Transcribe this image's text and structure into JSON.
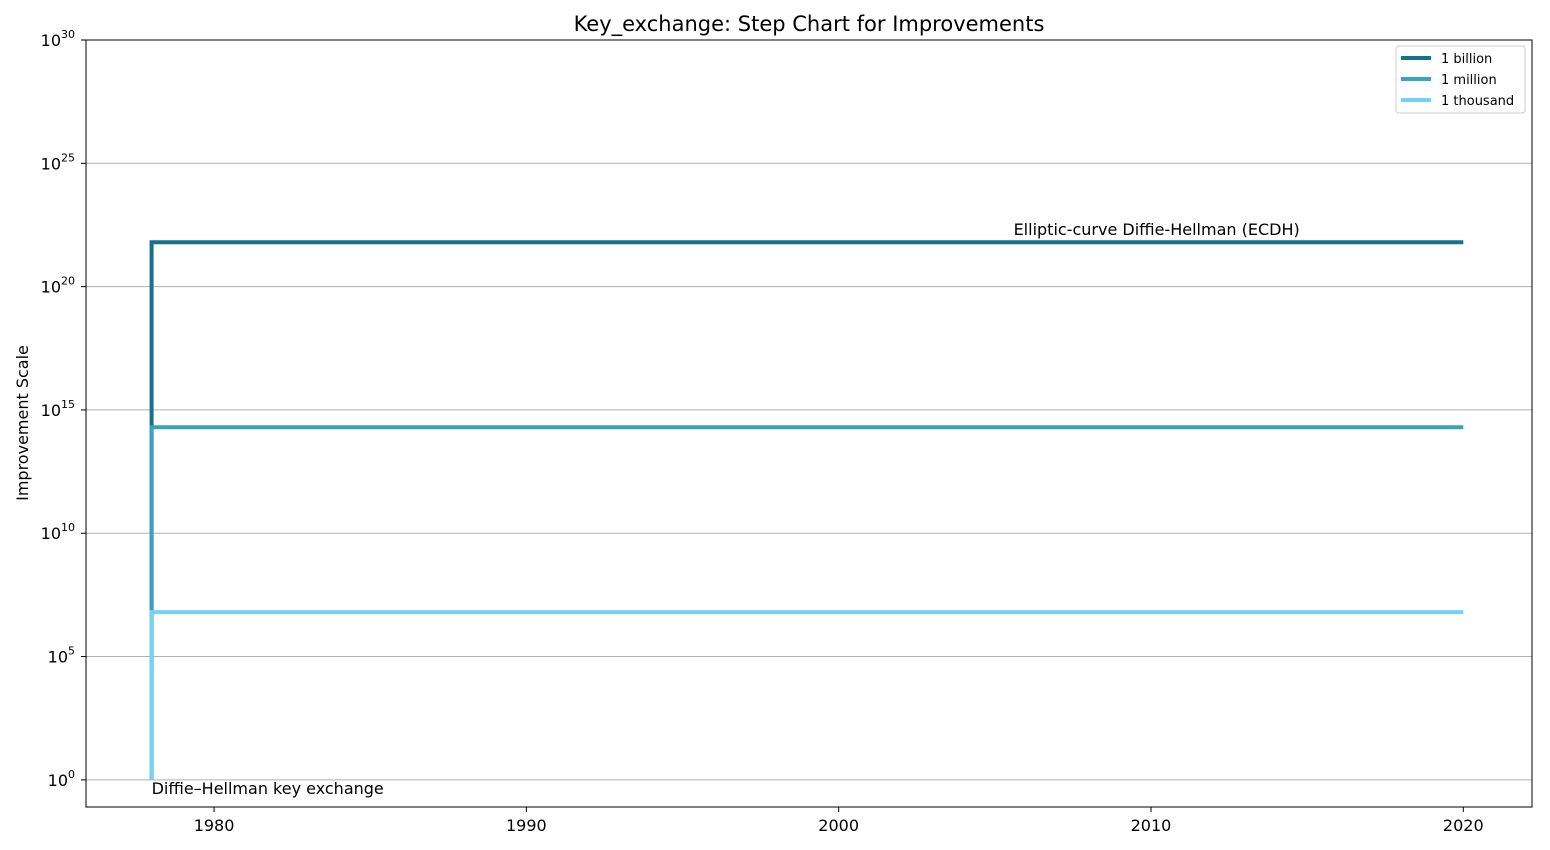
{
  "chart_data": {
    "type": "line",
    "title": "Key_exchange: Step Chart for Improvements",
    "xlabel": "",
    "ylabel": "Improvement Scale",
    "yscale": "log",
    "xlim": [
      1975.9,
      2022.2
    ],
    "ylim_exponent": [
      -1.1,
      30
    ],
    "x_ticks": [
      1980,
      1990,
      2000,
      2010,
      2020
    ],
    "y_tick_exponents": [
      0,
      5,
      10,
      15,
      20,
      25,
      30
    ],
    "grid": "horizontal",
    "legend_position": "top-right",
    "series": [
      {
        "name": "1 billion",
        "color": "#15718f",
        "x": [
          1978,
          1978,
          2020
        ],
        "y_exponent": [
          0,
          21.8,
          21.8
        ]
      },
      {
        "name": "1 million",
        "color": "#38a2c1",
        "x": [
          1978,
          1978,
          2020
        ],
        "y_exponent": [
          0,
          14.3,
          14.3
        ]
      },
      {
        "name": "1 thousand",
        "color": "#76d1f7",
        "x": [
          1978,
          1978,
          2020
        ],
        "y_exponent": [
          0,
          6.8,
          6.8
        ]
      }
    ],
    "annotations": [
      {
        "text": "Diffie–Hellman key exchange",
        "x": 1978,
        "y_exponent": 0
      },
      {
        "text": "Elliptic-curve Diffie-Hellman (ECDH)",
        "x": 2005.6,
        "y_exponent": 21.8
      }
    ]
  }
}
